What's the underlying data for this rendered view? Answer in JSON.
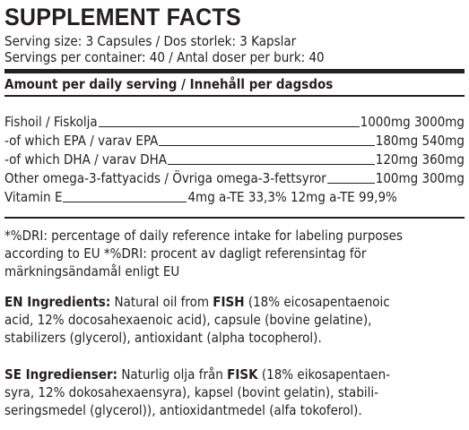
{
  "title": "SUPPLEMENT FACTS",
  "serving_size": "Serving size: 3 Capsules / Dos storlek: 3 Kapslar",
  "servings_per_container": "Servings per container: 40 / Antal doser per burk: 40",
  "amount_header": "Amount per daily serving / Innehåll per dagsdos",
  "rows": [
    {
      "label": "Fishoil / Fiskolja",
      "value": "1000mg 3000mg"
    },
    {
      "label": "-of which EPA  / varav EPA",
      "value": "180mg 540mg"
    },
    {
      "label": "-of which DHA  / varav  DHA",
      "value": "120mg 360mg"
    },
    {
      "label": "Other omega-3-fattyacids / Övriga omega-3-fettsyror",
      "value": "100mg 300mg"
    },
    {
      "label": "Vitamin E",
      "mid": "4mg a-TE  33,3%  12mg a-TE 99,9%"
    }
  ],
  "dri_note": {
    "line1": "*%DRI: percentage of daily reference intake for labeling purposes",
    "line2": "according to EU *%DRI: procent av dagligt referensintag för",
    "line3": "märkningsändamål enligt EU"
  },
  "en": {
    "heading": "EN Ingredients:",
    "line1_a": " Natural oil from ",
    "line1_b": "FISH",
    "line1_c": " (18% eicosapentaenoic",
    "line2": "acid, 12% docosahexaenoic acid), capsule (bovine gelatine),",
    "line3": "stabilizers (glycerol), antioxidant (alpha tocopherol)."
  },
  "se": {
    "heading": "SE Ingredienser:",
    "line1_a": " Naturlig olja från ",
    "line1_b": "FISK",
    "line1_c": " (18% eikosapentaen-",
    "line2": "syra, 12% dokosahexaensyra), kapsel (bovint gelatin), stabili-",
    "line3": "seringsmedel (glycerol)), antioxidantmedel (alfa tokoferol)."
  }
}
